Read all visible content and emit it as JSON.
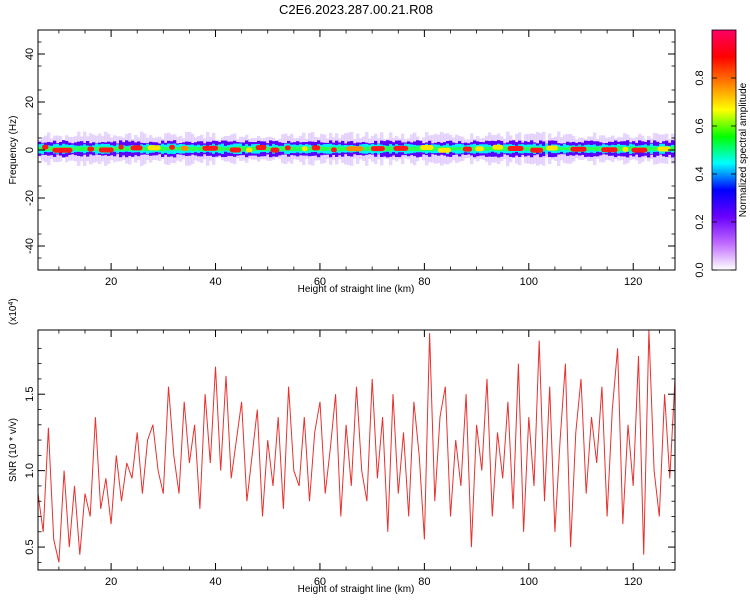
{
  "title": "C2E6.2023.287.00.21.R08",
  "chart_data": [
    {
      "type": "heatmap",
      "xlabel": "Height of straight line (km)",
      "ylabel": "Frequency (Hz)",
      "xlim": [
        6,
        128
      ],
      "ylim": [
        -50,
        50
      ],
      "x_ticks": [
        20,
        40,
        60,
        80,
        100,
        120
      ],
      "y_ticks": [
        -40,
        -20,
        0,
        20,
        40
      ],
      "band_center_hz": 0.5,
      "band_halfwidth_hz": 4,
      "colorbar": {
        "label": "Normalized spectral amplitude",
        "range": [
          0.0,
          1.0
        ],
        "ticks": [
          "0.0",
          "0.2",
          "0.4",
          "0.6",
          "0.8"
        ],
        "colors": [
          "#ffffff",
          "#c06aff",
          "#6a00ff",
          "#0000ff",
          "#00ffff",
          "#00ff00",
          "#ffff00",
          "#ff8000",
          "#ff0000",
          "#ff0066"
        ]
      }
    },
    {
      "type": "line",
      "xlabel": "Height of straight line (km)",
      "ylabel": "SNR (10 * v/v)",
      "y_multiplier": "(x10",
      "y_multiplier_exp": "4",
      "y_multiplier_close": ")",
      "xlim": [
        6,
        128
      ],
      "ylim": [
        0.35,
        1.92
      ],
      "x_ticks": [
        20,
        40,
        60,
        80,
        100,
        120
      ],
      "y_ticks": [
        "0.5",
        "1.0",
        "1.5"
      ],
      "color": "#e8312e",
      "series": [
        {
          "x": [
            6,
            7,
            8,
            9,
            10,
            11,
            12,
            13,
            14,
            15,
            16,
            17,
            18,
            19,
            20,
            21,
            22,
            23,
            24,
            25,
            26,
            27,
            28,
            29,
            30,
            31,
            32,
            33,
            34,
            35,
            36,
            37,
            38,
            39,
            40,
            41,
            42,
            43,
            44,
            45,
            46,
            47,
            48,
            49,
            50,
            51,
            52,
            53,
            54,
            55,
            56,
            57,
            58,
            59,
            60,
            61,
            62,
            63,
            64,
            65,
            66,
            67,
            68,
            69,
            70,
            71,
            72,
            73,
            74,
            75,
            76,
            77,
            78,
            79,
            80,
            81,
            82,
            83,
            84,
            85,
            86,
            87,
            88,
            89,
            90,
            91,
            92,
            93,
            94,
            95,
            96,
            97,
            98,
            99,
            100,
            101,
            102,
            103,
            104,
            105,
            106,
            107,
            108,
            109,
            110,
            111,
            112,
            113,
            114,
            115,
            116,
            117,
            118,
            119,
            120,
            121,
            122,
            123,
            124,
            125,
            126,
            127,
            128
          ],
          "y": [
            0.85,
            0.6,
            1.28,
            0.55,
            0.4,
            1.0,
            0.5,
            0.9,
            0.45,
            0.85,
            0.7,
            1.35,
            0.75,
            0.95,
            0.65,
            1.1,
            0.8,
            1.05,
            0.95,
            1.25,
            0.85,
            1.2,
            1.3,
            1.0,
            0.85,
            1.55,
            1.1,
            0.85,
            1.45,
            1.05,
            1.3,
            0.75,
            1.5,
            1.05,
            1.68,
            1.0,
            1.62,
            0.95,
            1.2,
            1.45,
            0.8,
            1.1,
            1.4,
            0.7,
            1.2,
            0.9,
            1.35,
            0.75,
            1.55,
            1.0,
            0.9,
            1.35,
            0.8,
            1.25,
            1.45,
            0.85,
            1.15,
            1.5,
            0.7,
            1.3,
            0.9,
            1.55,
            1.0,
            0.8,
            1.6,
            0.95,
            1.35,
            0.6,
            1.5,
            0.85,
            1.25,
            0.7,
            1.45,
            1.1,
            0.55,
            1.9,
            0.8,
            1.35,
            1.55,
            0.7,
            1.2,
            0.9,
            1.5,
            0.5,
            1.3,
            1.0,
            1.6,
            0.7,
            1.25,
            0.95,
            1.45,
            0.75,
            1.7,
            0.6,
            1.35,
            0.9,
            1.85,
            0.8,
            1.55,
            0.6,
            1.2,
            1.7,
            0.5,
            1.25,
            1.6,
            0.85,
            1.35,
            1.05,
            1.55,
            0.7,
            1.4,
            1.8,
            0.65,
            1.3,
            0.9,
            1.75,
            0.45,
            1.92,
            1.0,
            0.7,
            1.5,
            0.95,
            1.6
          ]
        }
      ]
    }
  ]
}
